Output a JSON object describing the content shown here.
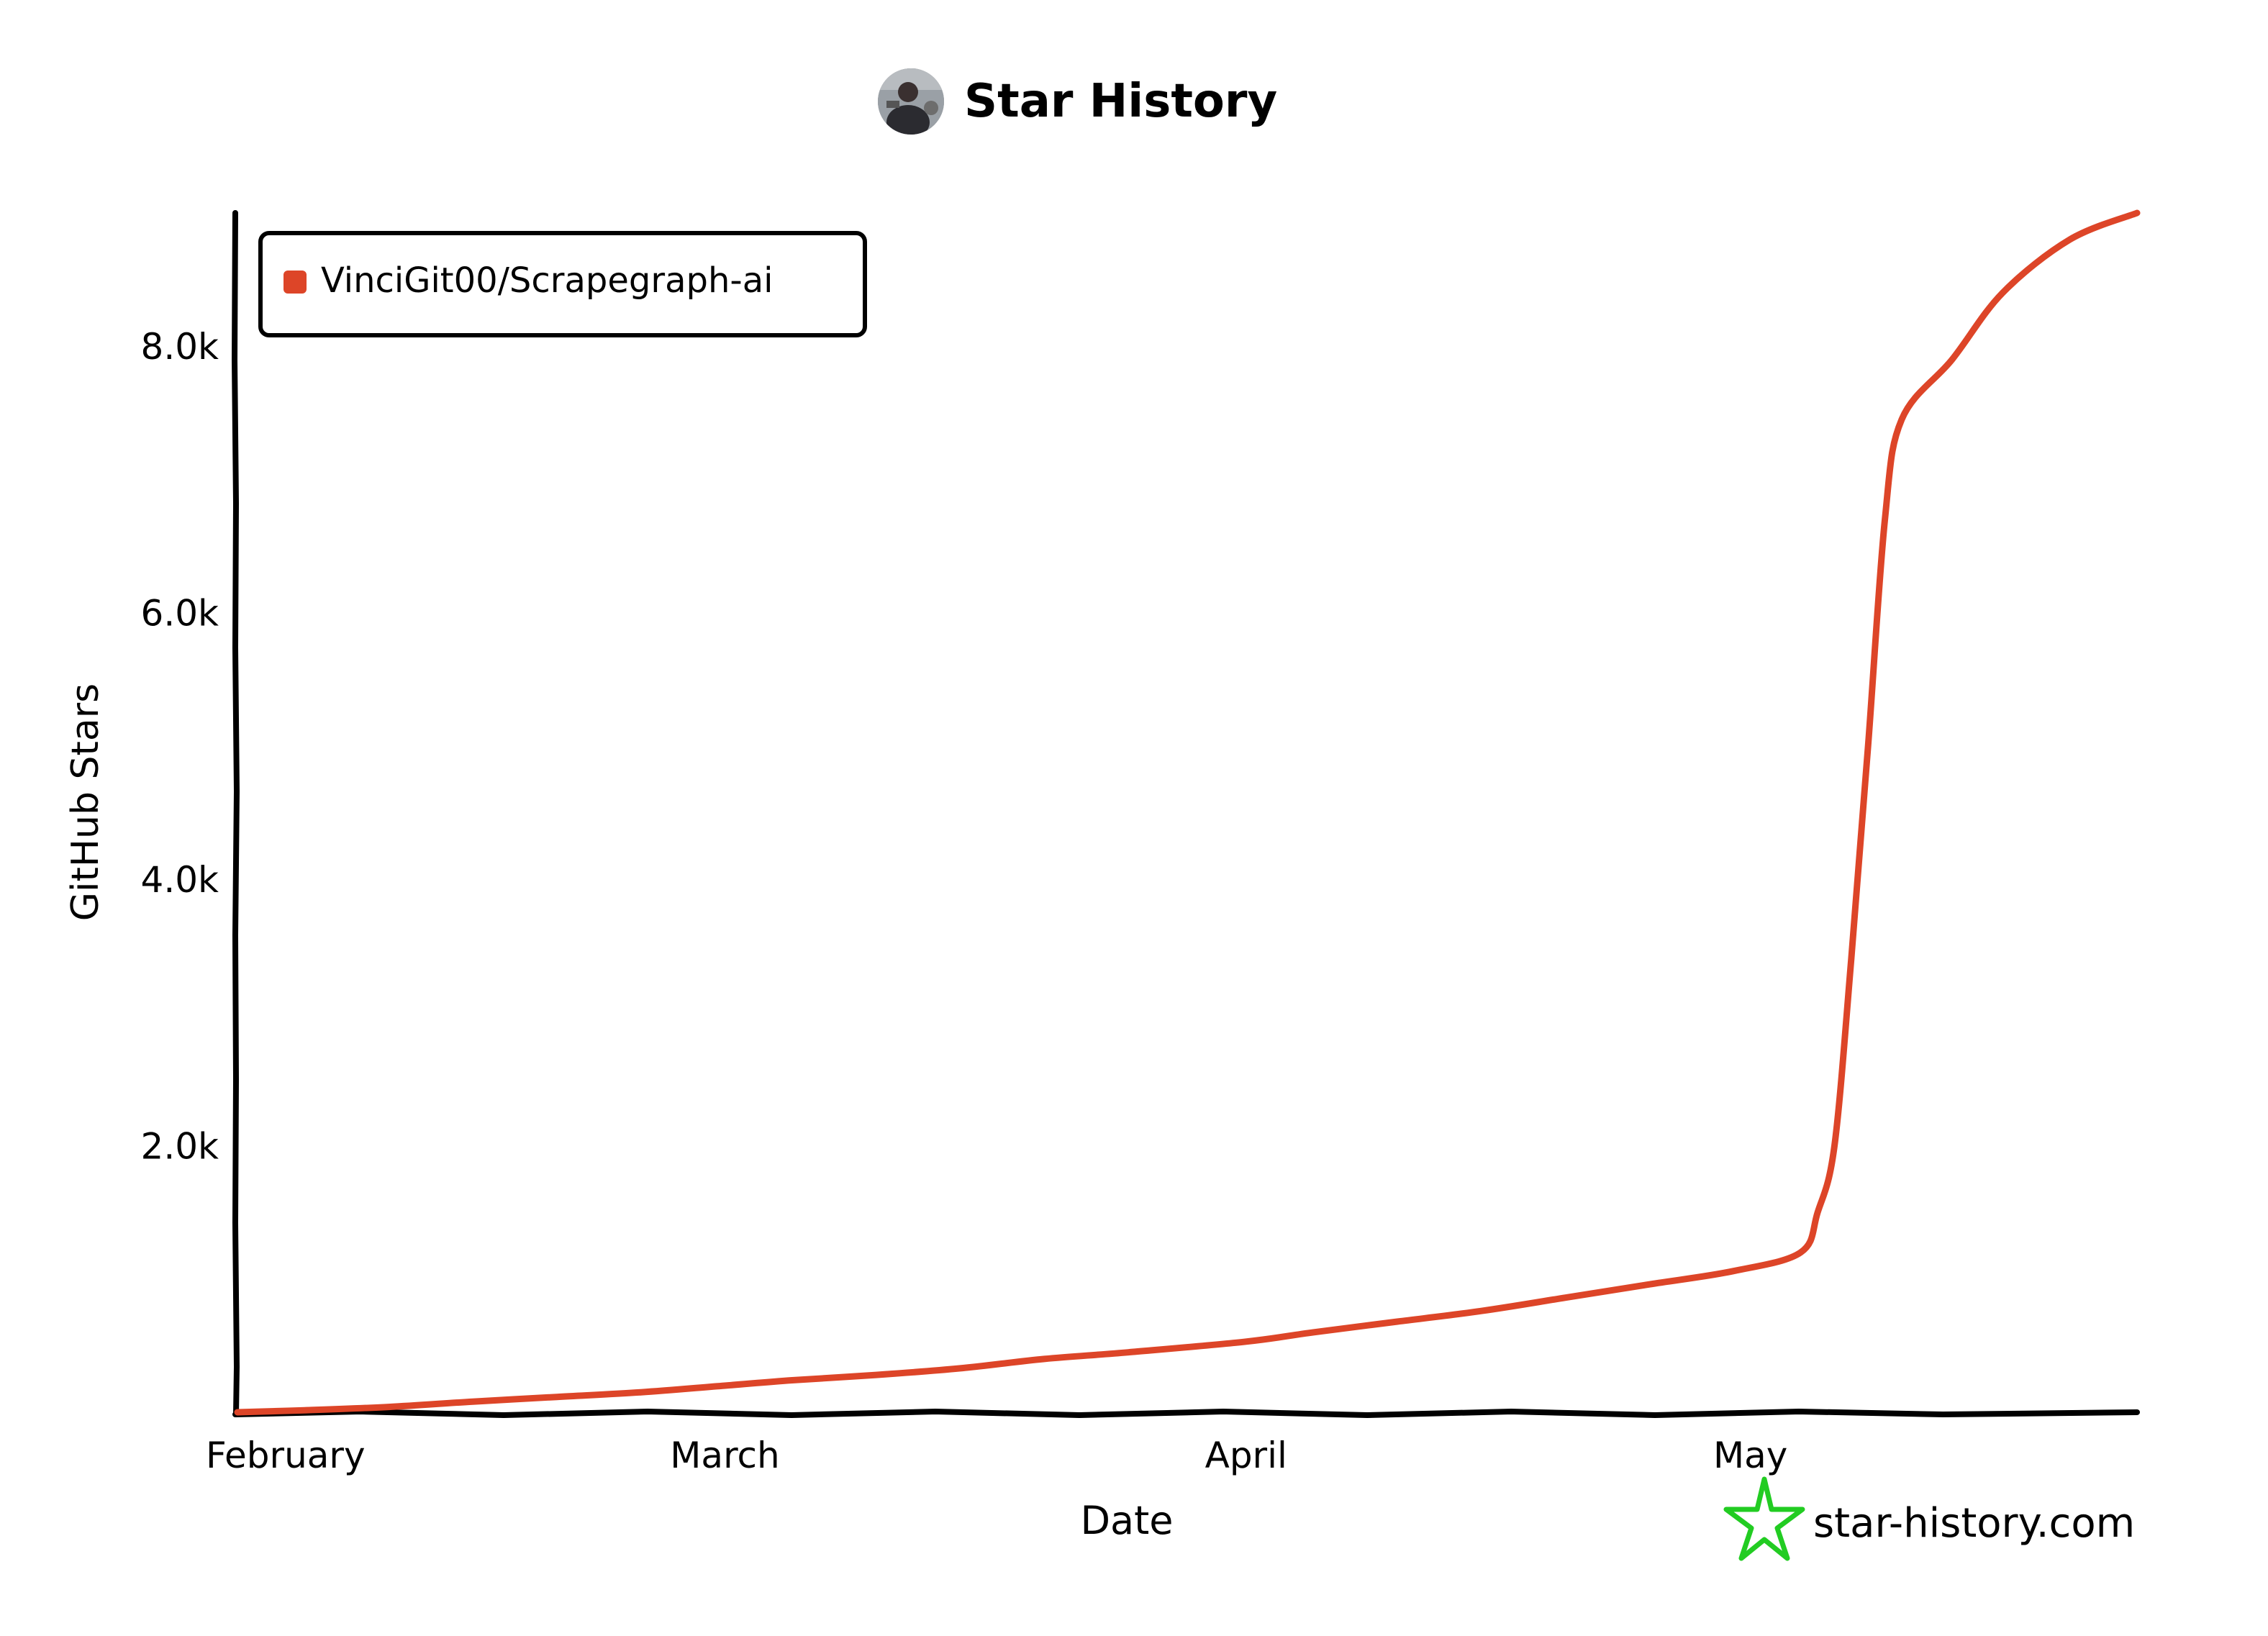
{
  "header": {
    "title": "Star History",
    "avatar_icon": "user-avatar-icon"
  },
  "watermark": {
    "text": "star-history.com",
    "icon": "star-history-logo-icon",
    "icon_color": "#22cc22"
  },
  "chart_data": {
    "type": "line",
    "title": "Star History",
    "xlabel": "Date",
    "ylabel": "GitHub Stars",
    "x_ticks": [
      "February",
      "March",
      "April",
      "May"
    ],
    "y_ticks": [
      "2.0k",
      "4.0k",
      "6.0k",
      "8.0k"
    ],
    "y_tick_values": [
      2000,
      4000,
      6000,
      8000
    ],
    "ylim": [
      0,
      9000
    ],
    "xlim": [
      "2024-02-01",
      "2024-05-24"
    ],
    "grid": false,
    "legend_position": "top-left",
    "series": [
      {
        "name": "VinciGit00/Scrapegraph-ai",
        "color": "#dd4528",
        "points": [
          {
            "x": "2024-02-01",
            "y": 0
          },
          {
            "x": "2024-02-05",
            "y": 15
          },
          {
            "x": "2024-02-10",
            "y": 40
          },
          {
            "x": "2024-02-15",
            "y": 80
          },
          {
            "x": "2024-02-20",
            "y": 115
          },
          {
            "x": "2024-02-25",
            "y": 150
          },
          {
            "x": "2024-03-01",
            "y": 200
          },
          {
            "x": "2024-03-05",
            "y": 240
          },
          {
            "x": "2024-03-10",
            "y": 280
          },
          {
            "x": "2024-03-15",
            "y": 330
          },
          {
            "x": "2024-03-20",
            "y": 400
          },
          {
            "x": "2024-03-25",
            "y": 450
          },
          {
            "x": "2024-04-01",
            "y": 530
          },
          {
            "x": "2024-04-05",
            "y": 600
          },
          {
            "x": "2024-04-10",
            "y": 680
          },
          {
            "x": "2024-04-15",
            "y": 760
          },
          {
            "x": "2024-04-20",
            "y": 860
          },
          {
            "x": "2024-04-25",
            "y": 960
          },
          {
            "x": "2024-04-30",
            "y": 1060
          },
          {
            "x": "2024-05-04",
            "y": 1200
          },
          {
            "x": "2024-05-05",
            "y": 1500
          },
          {
            "x": "2024-05-06",
            "y": 2000
          },
          {
            "x": "2024-05-07",
            "y": 3400
          },
          {
            "x": "2024-05-08",
            "y": 5000
          },
          {
            "x": "2024-05-09",
            "y": 6700
          },
          {
            "x": "2024-05-10",
            "y": 7450
          },
          {
            "x": "2024-05-13",
            "y": 7900
          },
          {
            "x": "2024-05-16",
            "y": 8400
          },
          {
            "x": "2024-05-20",
            "y": 8800
          },
          {
            "x": "2024-05-24",
            "y": 9000
          }
        ]
      }
    ]
  }
}
